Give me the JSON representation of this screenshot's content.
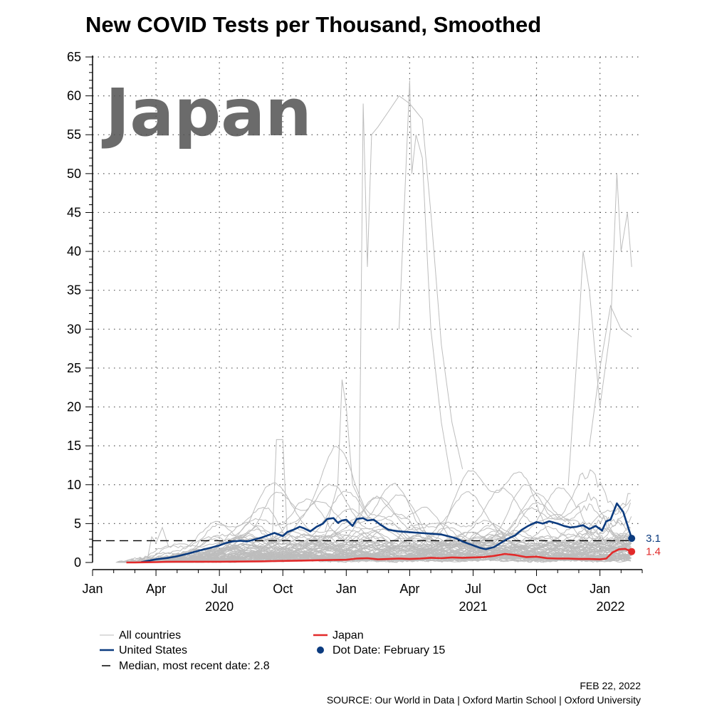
{
  "chart_data": {
    "type": "line",
    "title": "New COVID Tests per Thousand, Smoothed",
    "highlight_country": "Japan",
    "xlabel": "",
    "ylabel": "",
    "ylim": [
      0,
      65
    ],
    "yticks": [
      0,
      5,
      10,
      15,
      20,
      25,
      30,
      35,
      40,
      45,
      50,
      55,
      60,
      65
    ],
    "x_unit": "months since Jan 1, 2020",
    "xlim": [
      0,
      26
    ],
    "xticks": [
      {
        "x": 0,
        "label": "Jan"
      },
      {
        "x": 3,
        "label": "Apr"
      },
      {
        "x": 6,
        "label": "Jul"
      },
      {
        "x": 9,
        "label": "Oct"
      },
      {
        "x": 12,
        "label": "Jan"
      },
      {
        "x": 15,
        "label": "Apr"
      },
      {
        "x": 18,
        "label": "Jul"
      },
      {
        "x": 21,
        "label": "Oct"
      },
      {
        "x": 24,
        "label": "Jan"
      }
    ],
    "year_labels": [
      {
        "x": 6,
        "label": "2020"
      },
      {
        "x": 18,
        "label": "2021"
      },
      {
        "x": 24.5,
        "label": "2022"
      }
    ],
    "grid": true,
    "median": {
      "value": 2.8,
      "label": "Median, most recent date: 2.8"
    },
    "series": [
      {
        "name": "United States",
        "color": "#0b3b7f",
        "end_label": "3.1",
        "x": [
          2.3,
          2.6,
          3.0,
          3.3,
          3.6,
          4.0,
          4.3,
          4.6,
          5.0,
          5.3,
          5.6,
          6.0,
          6.3,
          6.6,
          7.0,
          7.3,
          7.6,
          8.0,
          8.3,
          8.6,
          9.0,
          9.2,
          9.5,
          9.8,
          10.0,
          10.3,
          10.6,
          10.9,
          11.1,
          11.4,
          11.6,
          11.8,
          12.0,
          12.3,
          12.5,
          12.8,
          13.0,
          13.3,
          13.6,
          14.0,
          14.5,
          15.0,
          15.5,
          16.0,
          16.5,
          16.8,
          17.2,
          17.5,
          17.8,
          18.0,
          18.3,
          18.6,
          19.0,
          19.3,
          19.6,
          20.0,
          20.3,
          20.6,
          21.0,
          21.3,
          21.6,
          22.0,
          22.3,
          22.6,
          22.9,
          23.2,
          23.5,
          23.8,
          24.1,
          24.3,
          24.5,
          24.8,
          25.1,
          25.5
        ],
        "y": [
          0.05,
          0.2,
          0.4,
          0.5,
          0.6,
          0.8,
          1.0,
          1.2,
          1.5,
          1.7,
          1.9,
          2.2,
          2.5,
          2.7,
          2.8,
          2.7,
          2.9,
          3.2,
          3.5,
          3.8,
          3.4,
          3.9,
          4.2,
          4.6,
          4.4,
          4.0,
          4.6,
          5.0,
          5.6,
          5.7,
          5.1,
          5.4,
          5.5,
          4.7,
          5.6,
          5.7,
          5.4,
          5.5,
          4.9,
          4.2,
          4.0,
          3.9,
          3.8,
          3.7,
          3.6,
          3.4,
          3.1,
          2.7,
          2.4,
          2.2,
          1.9,
          1.7,
          2.0,
          2.5,
          3.0,
          3.5,
          4.2,
          4.7,
          5.2,
          5.0,
          5.3,
          5.0,
          4.7,
          4.5,
          4.6,
          4.8,
          4.3,
          4.7,
          4.1,
          5.3,
          5.5,
          7.6,
          6.5,
          3.1
        ]
      },
      {
        "name": "Japan",
        "color": "#e22a2a",
        "end_label": "1.4",
        "x": [
          1.6,
          2.0,
          2.5,
          3.0,
          3.5,
          4.0,
          5.0,
          6.0,
          7.0,
          8.0,
          9.0,
          10.0,
          11.0,
          12.0,
          12.5,
          13.0,
          13.5,
          14.0,
          14.5,
          15.0,
          15.5,
          16.0,
          16.5,
          17.0,
          17.5,
          18.0,
          18.5,
          19.0,
          19.5,
          20.0,
          20.5,
          21.0,
          21.5,
          22.0,
          22.5,
          23.0,
          23.5,
          24.0,
          24.3,
          24.6,
          24.9,
          25.2,
          25.5
        ],
        "y": [
          0.0,
          0.0,
          0.03,
          0.05,
          0.08,
          0.1,
          0.1,
          0.1,
          0.12,
          0.15,
          0.2,
          0.25,
          0.3,
          0.35,
          0.5,
          0.55,
          0.4,
          0.45,
          0.5,
          0.45,
          0.5,
          0.6,
          0.55,
          0.65,
          0.6,
          0.65,
          0.7,
          0.85,
          1.1,
          0.95,
          0.7,
          0.75,
          0.55,
          0.5,
          0.5,
          0.45,
          0.45,
          0.4,
          0.5,
          1.3,
          1.7,
          1.75,
          1.4
        ]
      }
    ],
    "background_series_name": "All countries",
    "end_dot_x": 25.5,
    "legend": [
      {
        "label": "All countries",
        "kind": "line",
        "color": "#b8b8b8"
      },
      {
        "label": "Japan",
        "kind": "line",
        "color": "#e22a2a"
      },
      {
        "label": "United States",
        "kind": "line",
        "color": "#0b3b7f"
      },
      {
        "label": "Dot Date: February 15",
        "kind": "dot",
        "color": "#0b3b7f"
      },
      {
        "label": "Median, most recent date: 2.8",
        "kind": "dash",
        "color": "#000000"
      }
    ],
    "date_stamp": "FEB 22, 2022",
    "source": "SOURCE: Our World in Data | Oxford Martin School | Oxford University"
  }
}
